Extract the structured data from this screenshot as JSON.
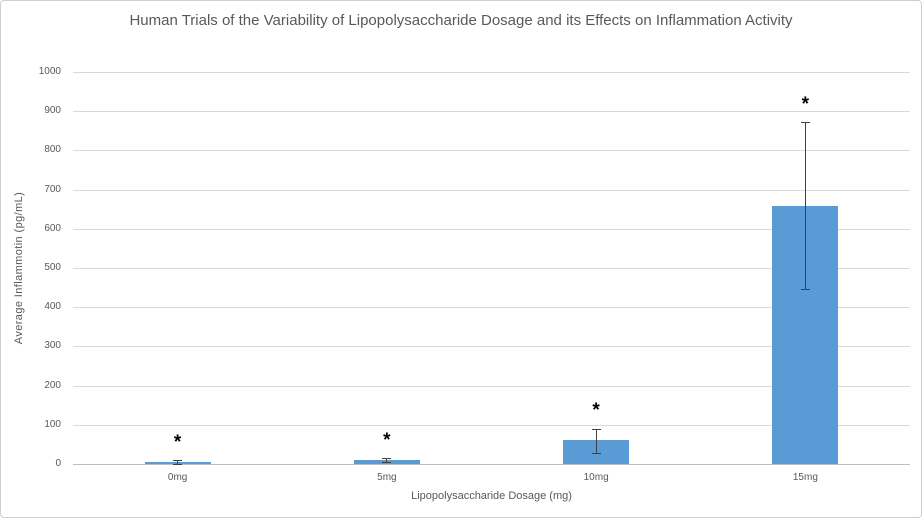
{
  "chart_data": {
    "type": "bar",
    "title": "Human Trials of the Variability of Lipopolysaccharide Dosage and its Effects on Inflammation Activity",
    "xlabel": "Lipopolysaccharide Dosage (mg)",
    "ylabel": "Average Inflammotin (pg/mL)",
    "categories": [
      "0mg",
      "5mg",
      "10mg",
      "15mg"
    ],
    "values": [
      4,
      10,
      61,
      657
    ],
    "error_low": [
      0,
      4,
      28,
      445
    ],
    "error_high": [
      8,
      13,
      89,
      870
    ],
    "significance": [
      "*",
      "*",
      "*",
      "*"
    ],
    "ylim": [
      0,
      1000
    ],
    "yticks": [
      0,
      100,
      200,
      300,
      400,
      500,
      600,
      700,
      800,
      900,
      1000
    ],
    "grid": "horizontal",
    "legend": "none",
    "colors": {
      "bar": "#5B9BD5",
      "error_bar": "#404040",
      "significance_marker": "#000000",
      "gridline": "#D9D9D9",
      "axis_line": "#BFBFBF",
      "text": "#595959",
      "frame_border": "#D0CECE",
      "background": "#FFFFFF"
    }
  }
}
